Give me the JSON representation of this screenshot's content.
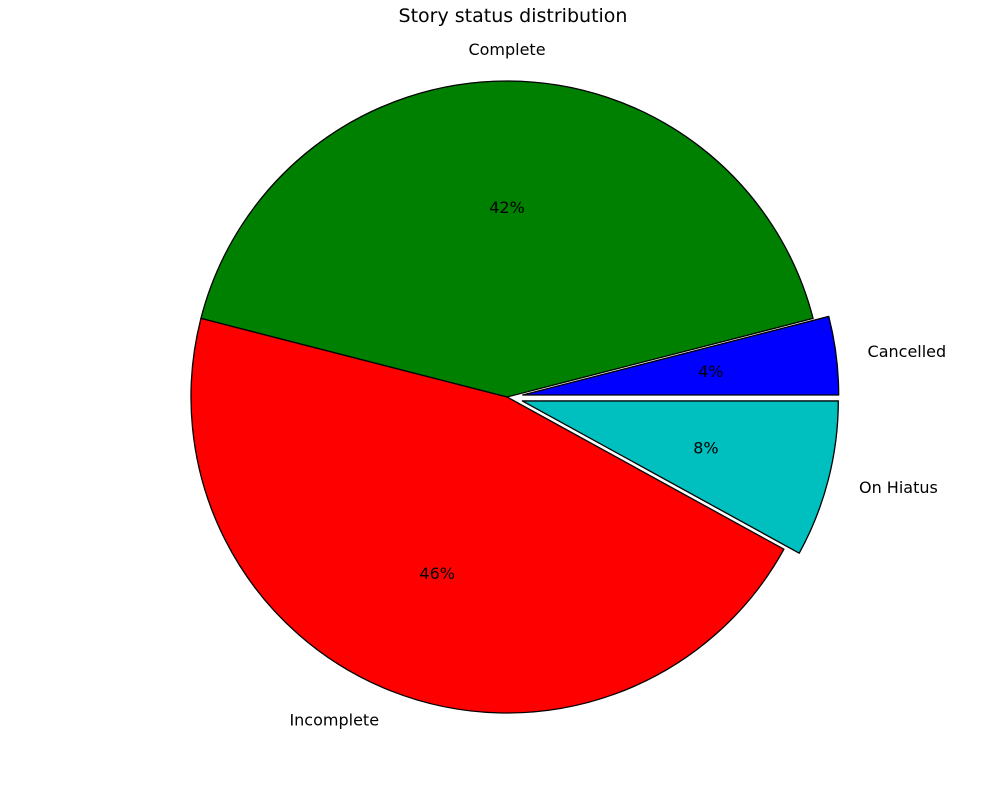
{
  "chart_data": {
    "type": "pie",
    "title": "Story status distribution",
    "slices": [
      {
        "label": "Cancelled",
        "value": 4,
        "pct_label": "4%",
        "color": "#0000ff",
        "exploded": true
      },
      {
        "label": "Complete",
        "value": 42,
        "pct_label": "42%",
        "color": "#008000",
        "exploded": false
      },
      {
        "label": "Incomplete",
        "value": 46,
        "pct_label": "46%",
        "color": "#ff0000",
        "exploded": false
      },
      {
        "label": "On Hiatus",
        "value": 8,
        "pct_label": "8%",
        "color": "#00bfbf",
        "exploded": true
      }
    ],
    "start_angle_deg": 0,
    "direction": "counterclockwise",
    "legend": "none"
  }
}
